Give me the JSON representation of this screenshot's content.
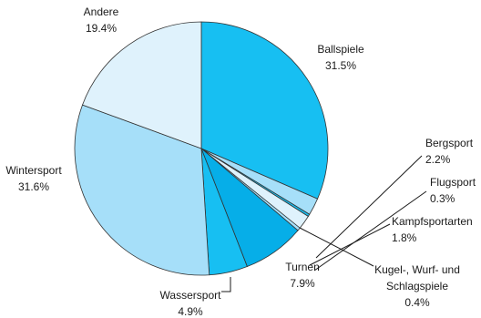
{
  "chart_data": {
    "type": "pie",
    "start_angle_deg": 0,
    "direction": "clockwise",
    "slices": [
      {
        "label": "Ballspiele",
        "value": 31.5,
        "value_label": "31.5%",
        "color": "#17bff2"
      },
      {
        "label": "Bergsport",
        "value": 2.2,
        "value_label": "2.2%",
        "color": "#a6dff9"
      },
      {
        "label": "Flugsport",
        "value": 0.3,
        "value_label": "0.3%",
        "color": "#17bff2"
      },
      {
        "label": "Kampfsportarten",
        "value": 1.8,
        "value_label": "1.8%",
        "color": "#dff2fc"
      },
      {
        "label": "Kugel-, Wurf- und Schlagspiele",
        "label_lines": [
          "Kugel-, Wurf- und",
          "Schlagspiele"
        ],
        "value": 0.4,
        "value_label": "0.4%",
        "color": "#a6dff9"
      },
      {
        "label": "Turnen",
        "value": 7.9,
        "value_label": "7.9%",
        "color": "#06aee8"
      },
      {
        "label": "Wassersport",
        "value": 4.9,
        "value_label": "4.9%",
        "color": "#17bff2"
      },
      {
        "label": "Wintersport",
        "value": 31.6,
        "value_label": "31.6%",
        "color": "#a6dff9"
      },
      {
        "label": "Andere",
        "value": 19.4,
        "value_label": "19.4%",
        "color": "#dff2fc"
      }
    ]
  }
}
